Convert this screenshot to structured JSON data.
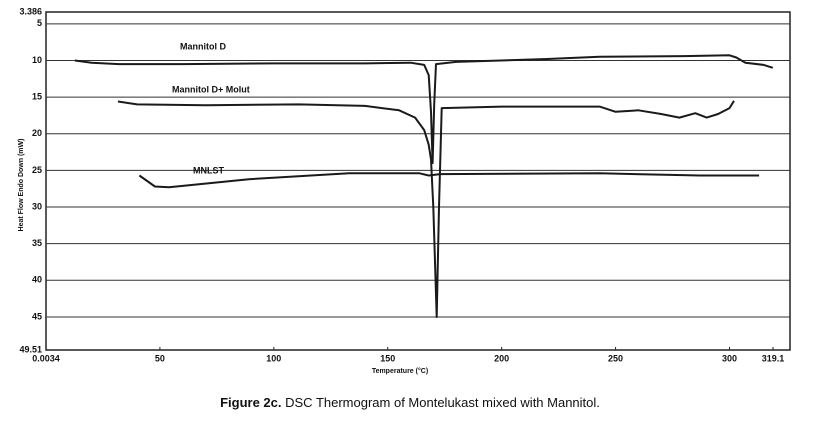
{
  "chart_data": {
    "type": "line",
    "x_label": "Temperature (°C)",
    "y_label": "Heat Flow Endo Down (mW)",
    "caption": {
      "label": "Figure 2c.",
      "text": "DSC Thermogram of Montelukast mixed with Mannitol."
    },
    "xlim": [
      0.0034,
      319.1
    ],
    "xticks": [
      0.0034,
      50,
      100,
      150,
      200,
      250,
      300,
      319.1
    ],
    "ylim": [
      3.386,
      49.51
    ],
    "yticks": [
      3.386,
      5,
      10,
      15,
      20,
      25,
      30,
      35,
      40,
      45,
      49.51
    ],
    "y_inverted": true,
    "grid": true,
    "series": [
      {
        "name": "Mannitol D",
        "color": "#1a1a1a",
        "x": [
          12.7,
          20,
          32,
          60,
          100,
          140,
          160,
          166,
          168,
          169,
          169.7,
          170.4,
          171.2,
          180,
          220,
          243,
          280,
          300,
          303,
          307,
          315,
          319
        ],
        "values": [
          10,
          10.3,
          10.5,
          10.5,
          10.4,
          10.4,
          10.3,
          10.6,
          12,
          17,
          24,
          16,
          10.5,
          10.2,
          9.8,
          9.5,
          9.4,
          9.3,
          9.6,
          10.3,
          10.6,
          11
        ]
      },
      {
        "name": "Mannitol D+ Molut",
        "color": "#1a1a1a",
        "x": [
          31.6,
          40,
          70,
          111,
          140,
          155,
          162,
          166,
          168,
          169,
          170,
          171.5,
          172.5,
          173.7,
          200,
          243,
          250,
          260,
          270,
          278,
          285,
          290,
          295,
          300,
          302
        ],
        "values": [
          15.6,
          16,
          16.1,
          16,
          16.2,
          16.8,
          17.8,
          19.5,
          21.5,
          23.5,
          30,
          45,
          30,
          16.5,
          16.3,
          16.3,
          17,
          16.8,
          17.3,
          17.8,
          17.2,
          17.8,
          17.3,
          16.5,
          15.5
        ]
      },
      {
        "name": "MNLST",
        "color": "#1a1a1a",
        "x": [
          41,
          47.8,
          54,
          89,
          133,
          164,
          168,
          173,
          243,
          287,
          313
        ],
        "values": [
          25.7,
          27.2,
          27.3,
          26.2,
          25.4,
          25.4,
          25.7,
          25.5,
          25.4,
          25.7,
          25.7
        ]
      }
    ]
  }
}
